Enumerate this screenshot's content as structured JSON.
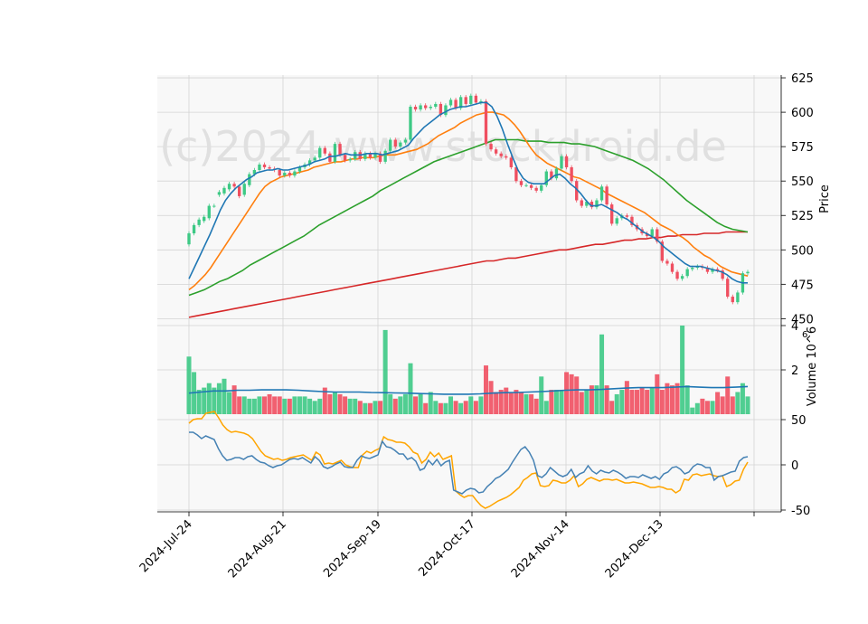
{
  "chart_data": {
    "type": "candlestick",
    "watermark": "(c)2024 www.stockdroid.de",
    "colors": {
      "up": "#3dc985",
      "down": "#ef4f60",
      "ma_blue": "#1f77b4",
      "ma_orange": "#ff7f0e",
      "ma_green": "#2ca02c",
      "ma_red": "#d62728",
      "osc_blue": "#4682b4",
      "osc_orange": "#ffa500",
      "panel_bg": "#f8f8f8",
      "grid": "#d3d3d3"
    },
    "x_ticks": [
      "2024-Jul-24",
      "2024-Aug-21",
      "2024-Sep-19",
      "2024-Oct-17",
      "2024-Nov-14",
      "2024-Dec-13"
    ],
    "price_panel": {
      "ylabel": "Price",
      "ylim": [
        445,
        627
      ],
      "yticks": [
        450,
        475,
        500,
        525,
        550,
        575,
        600,
        625
      ],
      "candles": [
        [
          504,
          512
        ],
        [
          512,
          518
        ],
        [
          518,
          522
        ],
        [
          521,
          524
        ],
        [
          523,
          532
        ],
        [
          532,
          532
        ],
        [
          540,
          542
        ],
        [
          541,
          545
        ],
        [
          544,
          548
        ],
        [
          548,
          546
        ],
        [
          546,
          539
        ],
        [
          540,
          548
        ],
        [
          547,
          555
        ],
        [
          555,
          558
        ],
        [
          558,
          562
        ],
        [
          562,
          560
        ],
        [
          560,
          559
        ],
        [
          559,
          558
        ],
        [
          558,
          554
        ],
        [
          554,
          556
        ],
        [
          556,
          554
        ],
        [
          554,
          557
        ],
        [
          557,
          560
        ],
        [
          560,
          562
        ],
        [
          562,
          565
        ],
        [
          565,
          567
        ],
        [
          567,
          574
        ],
        [
          574,
          570
        ],
        [
          570,
          564
        ],
        [
          564,
          577
        ],
        [
          577,
          569
        ],
        [
          569,
          565
        ],
        [
          565,
          566
        ],
        [
          566,
          571
        ],
        [
          571,
          566
        ],
        [
          566,
          570
        ],
        [
          570,
          567
        ],
        [
          567,
          570
        ],
        [
          570,
          564
        ],
        [
          564,
          572
        ],
        [
          572,
          580
        ],
        [
          580,
          575
        ],
        [
          575,
          578
        ],
        [
          578,
          580
        ],
        [
          580,
          604
        ],
        [
          604,
          602
        ],
        [
          602,
          605
        ],
        [
          605,
          603
        ],
        [
          603,
          604
        ],
        [
          604,
          606
        ],
        [
          606,
          598
        ],
        [
          598,
          605
        ],
        [
          605,
          609
        ],
        [
          609,
          603
        ],
        [
          603,
          611
        ],
        [
          611,
          606
        ],
        [
          606,
          612
        ],
        [
          612,
          607
        ],
        [
          607,
          608
        ],
        [
          608,
          577
        ],
        [
          577,
          573
        ],
        [
          573,
          570
        ],
        [
          570,
          568
        ],
        [
          568,
          567
        ],
        [
          567,
          560
        ],
        [
          560,
          550
        ],
        [
          550,
          547
        ],
        [
          547,
          547
        ],
        [
          547,
          545
        ],
        [
          545,
          543
        ],
        [
          543,
          547
        ],
        [
          547,
          557
        ],
        [
          557,
          552
        ],
        [
          552,
          559
        ],
        [
          559,
          568
        ],
        [
          568,
          560
        ],
        [
          560,
          550
        ],
        [
          550,
          536
        ],
        [
          536,
          532
        ],
        [
          532,
          535
        ],
        [
          535,
          531
        ],
        [
          531,
          536
        ],
        [
          536,
          546
        ],
        [
          546,
          533
        ],
        [
          533,
          519
        ],
        [
          519,
          523
        ],
        [
          523,
          525
        ],
        [
          525,
          524
        ],
        [
          524,
          518
        ],
        [
          518,
          515
        ],
        [
          515,
          512
        ],
        [
          512,
          510
        ],
        [
          510,
          515
        ],
        [
          515,
          506
        ],
        [
          506,
          492
        ],
        [
          492,
          490
        ],
        [
          490,
          484
        ],
        [
          484,
          479
        ],
        [
          479,
          481
        ],
        [
          481,
          486
        ],
        [
          486,
          487
        ],
        [
          487,
          488
        ],
        [
          488,
          487
        ],
        [
          487,
          484
        ],
        [
          484,
          486
        ],
        [
          486,
          485
        ],
        [
          485,
          479
        ],
        [
          479,
          466
        ],
        [
          466,
          462
        ],
        [
          462,
          469
        ],
        [
          469,
          483
        ],
        [
          483,
          484
        ]
      ],
      "ma_blue": [
        479,
        487,
        495,
        503,
        511,
        520,
        529,
        536,
        541,
        545,
        548,
        551,
        553,
        556,
        557,
        558,
        558,
        559,
        558,
        558,
        559,
        560,
        561,
        562,
        564,
        565,
        566,
        568,
        568,
        569,
        570,
        569,
        569,
        569,
        570,
        570,
        570,
        569,
        570,
        571,
        572,
        574,
        576,
        581,
        585,
        589,
        592,
        595,
        598,
        600,
        602,
        603,
        604,
        604,
        605,
        606,
        607,
        607,
        604,
        597,
        588,
        577,
        567,
        558,
        552,
        549,
        548,
        548,
        548,
        551,
        554,
        555,
        552,
        548,
        545,
        541,
        536,
        532,
        532,
        533,
        531,
        529,
        527,
        524,
        522,
        519,
        516,
        513,
        511,
        509,
        506,
        502,
        499,
        496,
        493,
        490,
        488,
        488,
        488,
        487,
        486,
        485,
        484,
        482,
        479,
        477,
        476,
        476
      ],
      "ma_orange": [
        471,
        474,
        478,
        482,
        487,
        493,
        499,
        505,
        511,
        517,
        523,
        529,
        535,
        541,
        546,
        549,
        551,
        553,
        554,
        555,
        556,
        557,
        558,
        560,
        561,
        562,
        563,
        564,
        564,
        565,
        566,
        566,
        567,
        567,
        567,
        568,
        569,
        569,
        569,
        570,
        571,
        572,
        573,
        575,
        577,
        580,
        583,
        585,
        587,
        589,
        592,
        594,
        596,
        598,
        599,
        600,
        600,
        599,
        598,
        595,
        591,
        586,
        580,
        574,
        569,
        566,
        563,
        561,
        559,
        557,
        555,
        553,
        552,
        550,
        548,
        546,
        544,
        541,
        539,
        537,
        535,
        533,
        531,
        529,
        527,
        524,
        521,
        518,
        516,
        514,
        511,
        509,
        506,
        502,
        499,
        496,
        494,
        491,
        488,
        486,
        484,
        483,
        482,
        481
      ],
      "ma_green": [
        467,
        469,
        471,
        474,
        477,
        479,
        482,
        485,
        489,
        492,
        495,
        498,
        501,
        504,
        507,
        510,
        514,
        518,
        521,
        524,
        527,
        530,
        533,
        536,
        539,
        543,
        546,
        549,
        552,
        555,
        558,
        561,
        564,
        566,
        568,
        570,
        572,
        574,
        576,
        578,
        580,
        580,
        580,
        580,
        579,
        579,
        579,
        578,
        578,
        578,
        577,
        577,
        576,
        575,
        573,
        571,
        569,
        567,
        565,
        562,
        559,
        555,
        551,
        546,
        541,
        536,
        532,
        528,
        524,
        520,
        517,
        515,
        514,
        513
      ],
      "ma_red": [
        451,
        452,
        453,
        454,
        455,
        456,
        457,
        458,
        459,
        460,
        461,
        462,
        463,
        464,
        465,
        466,
        467,
        468,
        469,
        470,
        471,
        472,
        473,
        474,
        475,
        476,
        477,
        478,
        479,
        480,
        481,
        482,
        483,
        484,
        485,
        486,
        487,
        488,
        489,
        490,
        491,
        492,
        492,
        493,
        494,
        494,
        495,
        496,
        497,
        498,
        499,
        500,
        500,
        501,
        502,
        503,
        504,
        504,
        505,
        506,
        507,
        507,
        508,
        508,
        509,
        509,
        510,
        510,
        511,
        511,
        511,
        512,
        512,
        512,
        513,
        513,
        513,
        513
      ]
    },
    "volume_panel": {
      "ylabel": "Volume  10^6",
      "ylim": [
        0,
        4
      ],
      "yticks": [
        2,
        4
      ],
      "volumes": [
        2.6,
        1.9,
        1.1,
        1.2,
        1.4,
        1.2,
        1.4,
        1.6,
        1.0,
        1.3,
        0.8,
        0.8,
        0.7,
        0.7,
        0.8,
        0.8,
        0.9,
        0.8,
        0.8,
        0.7,
        0.7,
        0.8,
        0.8,
        0.8,
        0.7,
        0.6,
        0.7,
        1.2,
        0.9,
        1.0,
        0.9,
        0.8,
        0.7,
        0.7,
        0.6,
        0.5,
        0.5,
        0.6,
        0.6,
        3.8,
        0.9,
        0.7,
        0.8,
        0.9,
        2.3,
        0.8,
        0.9,
        0.5,
        1.0,
        0.6,
        0.5,
        0.5,
        0.8,
        0.6,
        0.5,
        0.6,
        0.8,
        0.6,
        0.8,
        2.2,
        1.5,
        1.0,
        1.1,
        1.2,
        1.0,
        1.1,
        1.0,
        0.9,
        0.9,
        0.7,
        1.7,
        0.6,
        1.1,
        1.1,
        1.1,
        1.9,
        1.8,
        1.7,
        1.0,
        1.1,
        1.3,
        1.3,
        3.6,
        1.3,
        0.6,
        0.9,
        1.1,
        1.5,
        1.1,
        1.1,
        1.2,
        1.1,
        1.2,
        1.8,
        1.1,
        1.4,
        1.3,
        1.4,
        4.0,
        1.3,
        0.3,
        0.5,
        0.7,
        0.6,
        0.6,
        1.0,
        0.8,
        1.7,
        0.8,
        1.0,
        1.4,
        0.8
      ],
      "avg": [
        0.95,
        1.0,
        1.05,
        1.05,
        1.08,
        1.08,
        1.1,
        1.1,
        1.1,
        1.08,
        1.05,
        1.02,
        1.0,
        1.0,
        1.0,
        0.98,
        0.97,
        0.96,
        0.95,
        0.93,
        0.92,
        0.9,
        0.9,
        0.9,
        0.92,
        0.95,
        0.97,
        0.98,
        1.0,
        1.02,
        1.05,
        1.08,
        1.1,
        1.1,
        1.12,
        1.15,
        1.18,
        1.2,
        1.2,
        1.2,
        1.22,
        1.25,
        1.22,
        1.2,
        1.2,
        1.22,
        1.25
      ]
    },
    "oscillator_panel": {
      "ylim": [
        -52,
        56
      ],
      "yticks": [
        -50,
        0,
        50
      ],
      "blue": [
        36,
        36,
        33,
        29,
        32,
        30,
        28,
        18,
        10,
        5,
        6,
        8,
        8,
        6,
        9,
        10,
        6,
        3,
        2,
        -1,
        -3,
        -1,
        0,
        3,
        6,
        7,
        6,
        8,
        5,
        2,
        9,
        5,
        -2,
        -4,
        -2,
        1,
        3,
        -2,
        -3,
        -3,
        5,
        10,
        8,
        7,
        9,
        11,
        26,
        20,
        19,
        16,
        12,
        12,
        6,
        8,
        4,
        -6,
        -4,
        5,
        0,
        6,
        -1,
        3,
        5,
        -28,
        -30,
        -32,
        -28,
        -26,
        -27,
        -31,
        -30,
        -24,
        -20,
        -15,
        -13,
        -9,
        -5,
        3,
        10,
        17,
        20,
        14,
        5,
        -12,
        -14,
        -10,
        -3,
        -7,
        -11,
        -13,
        -11,
        -5,
        -14,
        -10,
        -8,
        -1,
        -7,
        -10,
        -6,
        -8,
        -9,
        -6,
        -8,
        -11,
        -15,
        -13,
        -13,
        -14,
        -11,
        -13,
        -15,
        -13,
        -16,
        -10,
        -8,
        -3,
        -2,
        -5,
        -10,
        -8,
        -2,
        1,
        0,
        -3,
        -3,
        -17,
        -13,
        -12,
        -10,
        -8,
        -7,
        4,
        8,
        9
      ],
      "orange": [
        46,
        50,
        51,
        51,
        57,
        58,
        59,
        52,
        44,
        39,
        36,
        37,
        36,
        35,
        33,
        29,
        22,
        15,
        10,
        8,
        6,
        7,
        5,
        6,
        8,
        9,
        10,
        11,
        8,
        5,
        14,
        11,
        1,
        2,
        1,
        3,
        5,
        0,
        -2,
        -3,
        -3,
        11,
        15,
        13,
        16,
        18,
        31,
        28,
        27,
        25,
        25,
        24,
        20,
        14,
        12,
        2,
        6,
        14,
        9,
        13,
        6,
        8,
        10,
        -29,
        -33,
        -36,
        -34,
        -34,
        -40,
        -45,
        -48,
        -46,
        -43,
        -40,
        -38,
        -36,
        -33,
        -29,
        -25,
        -17,
        -14,
        -10,
        -9,
        -23,
        -24,
        -23,
        -17,
        -18,
        -20,
        -20,
        -17,
        -12,
        -24,
        -21,
        -16,
        -14,
        -16,
        -18,
        -16,
        -16,
        -17,
        -16,
        -18,
        -20,
        -20,
        -19,
        -20,
        -21,
        -23,
        -25,
        -25,
        -24,
        -25,
        -27,
        -27,
        -31,
        -28,
        -16,
        -17,
        -11,
        -10,
        -12,
        -11,
        -10,
        -12,
        -13,
        -12,
        -24,
        -22,
        -18,
        -17,
        -5,
        3
      ]
    }
  }
}
